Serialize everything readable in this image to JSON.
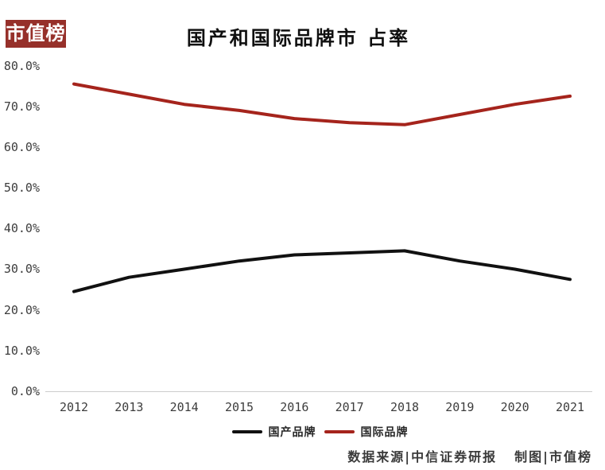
{
  "logo": {
    "text": "市值榜",
    "bg_color": "#96302a",
    "text_color": "#ffffff"
  },
  "chart_data": {
    "type": "line",
    "title": "国产和国际品牌市 占率",
    "x": [
      "2012",
      "2013",
      "2014",
      "2015",
      "2016",
      "2017",
      "2018",
      "2019",
      "2020",
      "2021"
    ],
    "series": [
      {
        "name": "国产品牌",
        "color": "#111111",
        "values": [
          24.5,
          28.0,
          30.0,
          32.0,
          33.5,
          34.0,
          34.5,
          32.0,
          30.0,
          27.5
        ]
      },
      {
        "name": "国际品牌",
        "color": "#a5241c",
        "values": [
          75.5,
          73.0,
          70.5,
          69.0,
          67.0,
          66.0,
          65.5,
          68.0,
          70.5,
          72.5
        ]
      }
    ],
    "xlabel": "",
    "ylabel": "",
    "ylim": [
      0,
      80
    ],
    "ytick_step": 10,
    "yticks": [
      "0.0%",
      "10.0%",
      "20.0%",
      "30.0%",
      "40.0%",
      "50.0%",
      "60.0%",
      "70.0%",
      "80.0%"
    ],
    "grid": false,
    "legend_position": "bottom-center"
  },
  "footer": {
    "source": "数据来源|中信证券研报",
    "credit": "制图|市值榜"
  }
}
